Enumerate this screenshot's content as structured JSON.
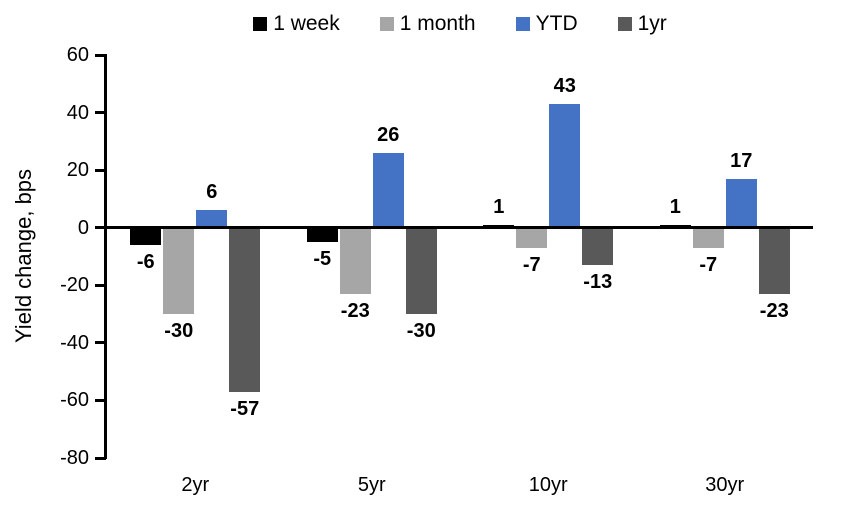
{
  "chart_data": {
    "type": "bar",
    "title": "",
    "xlabel": "",
    "ylabel": "Yield change, bps",
    "categories": [
      "2yr",
      "5yr",
      "10yr",
      "30yr"
    ],
    "series": [
      {
        "name": "1 week",
        "color": "#000000",
        "values": [
          -6,
          -5,
          1,
          1
        ]
      },
      {
        "name": "1 month",
        "color": "#A6A6A6",
        "values": [
          -30,
          -23,
          -7,
          -7
        ]
      },
      {
        "name": "YTD",
        "color": "#4472C4",
        "values": [
          6,
          26,
          43,
          17
        ]
      },
      {
        "name": "1yr",
        "color": "#595959",
        "values": [
          -57,
          -30,
          -13,
          -23
        ]
      }
    ],
    "ylim": [
      -80,
      60
    ],
    "yticks": [
      60,
      40,
      20,
      0,
      -20,
      -40,
      -60,
      -80
    ],
    "grid": false,
    "legend_position": "top",
    "data_labels": true,
    "axis_color": "#000000",
    "background": "#FFFFFF"
  }
}
